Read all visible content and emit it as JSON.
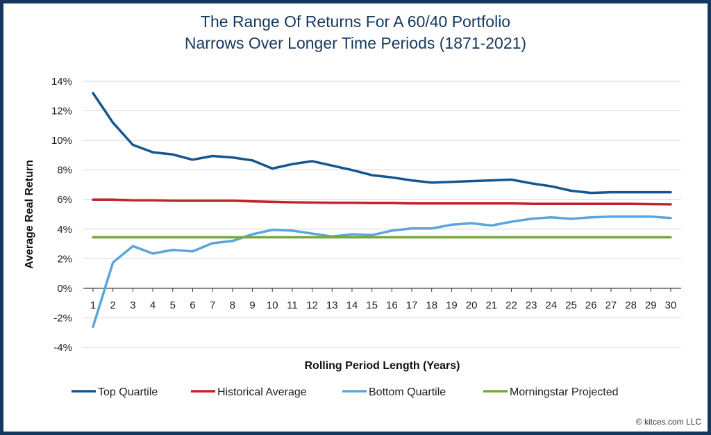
{
  "chart_data": {
    "type": "line",
    "title_line1": "The Range Of Returns For A 60/40 Portfolio",
    "title_line2": "Narrows Over Longer Time Periods (1871-2021)",
    "xlabel": "Rolling Period Length (Years)",
    "ylabel": "Average Real Return",
    "x": [
      1,
      2,
      3,
      4,
      5,
      6,
      7,
      8,
      9,
      10,
      11,
      12,
      13,
      14,
      15,
      16,
      17,
      18,
      19,
      20,
      21,
      22,
      23,
      24,
      25,
      26,
      27,
      28,
      29,
      30
    ],
    "ylim": [
      -4,
      14
    ],
    "yticks": [
      -4,
      -2,
      0,
      2,
      4,
      6,
      8,
      10,
      12,
      14
    ],
    "ytick_labels": [
      "-4%",
      "-2%",
      "0%",
      "2%",
      "4%",
      "6%",
      "8%",
      "10%",
      "12%",
      "14%"
    ],
    "grid": "horizontal",
    "legend_position": "bottom",
    "series": [
      {
        "name": "Top Quartile",
        "color": "#14578f",
        "values": [
          13.2,
          11.2,
          9.7,
          9.2,
          9.05,
          8.7,
          8.95,
          8.85,
          8.65,
          8.1,
          8.4,
          8.6,
          8.3,
          8.0,
          7.65,
          7.5,
          7.3,
          7.15,
          7.2,
          7.25,
          7.3,
          7.35,
          7.1,
          6.9,
          6.6,
          6.45,
          6.5,
          6.5,
          6.5,
          6.5
        ]
      },
      {
        "name": "Historical Average",
        "color": "#c0242f",
        "values": [
          6.0,
          6.0,
          5.95,
          5.95,
          5.92,
          5.92,
          5.92,
          5.92,
          5.88,
          5.85,
          5.82,
          5.8,
          5.78,
          5.78,
          5.76,
          5.76,
          5.74,
          5.74,
          5.74,
          5.74,
          5.74,
          5.74,
          5.72,
          5.72,
          5.72,
          5.72,
          5.72,
          5.72,
          5.7,
          5.68
        ]
      },
      {
        "name": "Bottom Quartile",
        "color": "#5aa5dc",
        "values": [
          -2.6,
          1.75,
          2.85,
          2.35,
          2.6,
          2.5,
          3.05,
          3.2,
          3.65,
          3.95,
          3.9,
          3.7,
          3.5,
          3.65,
          3.6,
          3.9,
          4.05,
          4.05,
          4.3,
          4.4,
          4.25,
          4.5,
          4.7,
          4.8,
          4.7,
          4.8,
          4.85,
          4.85,
          4.85,
          4.75
        ]
      },
      {
        "name": "Morningstar Projected",
        "color": "#78a73a",
        "values": [
          3.45,
          3.45,
          3.45,
          3.45,
          3.45,
          3.45,
          3.45,
          3.45,
          3.45,
          3.45,
          3.45,
          3.45,
          3.45,
          3.45,
          3.45,
          3.45,
          3.45,
          3.45,
          3.45,
          3.45,
          3.45,
          3.45,
          3.45,
          3.45,
          3.45,
          3.45,
          3.45,
          3.45,
          3.45,
          3.45
        ]
      }
    ]
  },
  "credit": "© kitces.com LLC"
}
